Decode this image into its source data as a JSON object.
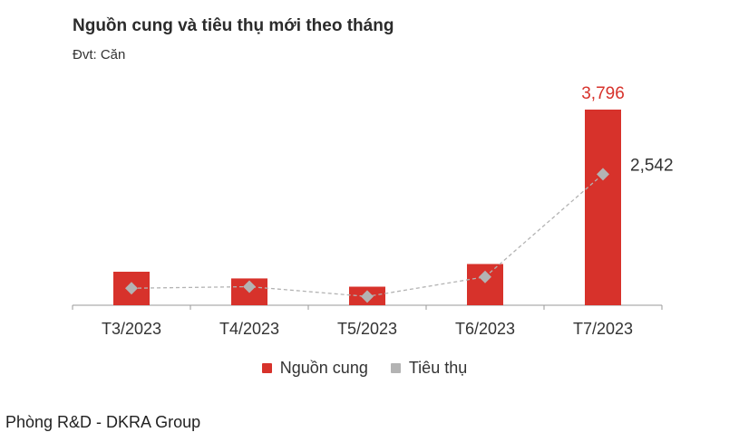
{
  "header": {
    "title": "Nguồn cung và tiêu thụ mới theo tháng",
    "unit": "Đvt: Căn"
  },
  "footer": {
    "source": "Phòng R&D - DKRA Group"
  },
  "colors": {
    "supply": "#d7322b",
    "consumption": "#b3b3b3",
    "supply_label": "#d7322b",
    "consumption_label": "#333333",
    "axis": "#9a9a9a"
  },
  "chart_data": {
    "type": "bar",
    "categories": [
      "T3/2023",
      "T4/2023",
      "T5/2023",
      "T6/2023",
      "T7/2023"
    ],
    "series": [
      {
        "name": "Nguồn cung",
        "kind": "bar",
        "values": [
          650,
          520,
          360,
          800,
          3796
        ],
        "value_labels": [
          "",
          "",
          "",
          "",
          "3,796"
        ]
      },
      {
        "name": "Tiêu thụ",
        "kind": "line-marker",
        "values": [
          330,
          360,
          170,
          550,
          2542
        ],
        "value_labels": [
          "",
          "",
          "",
          "",
          "2,542"
        ]
      }
    ],
    "ylim": [
      0,
      3796
    ],
    "grid": false,
    "legend_position": "bottom-center"
  }
}
